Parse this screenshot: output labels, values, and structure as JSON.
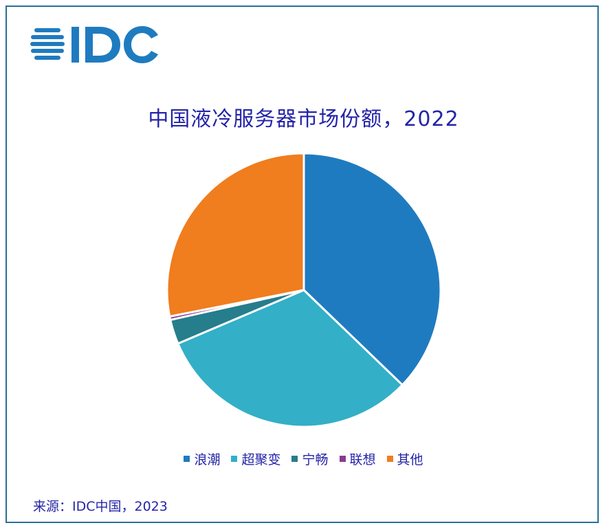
{
  "brand": {
    "logo_text": "IDC",
    "logo_color": "#1f7bc0"
  },
  "chart_data": {
    "type": "pie",
    "title": "中国液冷服务器市场份额，2022",
    "categories": [
      "浪潮",
      "超聚变",
      "宁畅",
      "联想",
      "其他"
    ],
    "values": [
      37.2,
      31.4,
      2.9,
      0.4,
      28.1
    ],
    "unit": "%",
    "colors": [
      "#1f7bc0",
      "#33afc7",
      "#267d8c",
      "#8b3a8f",
      "#f07d1e"
    ],
    "start_angle_deg": 0,
    "direction": "clockwise",
    "legend_position": "bottom"
  },
  "source": "来源：IDC中国，2023",
  "frame_color": "#2a6f97"
}
